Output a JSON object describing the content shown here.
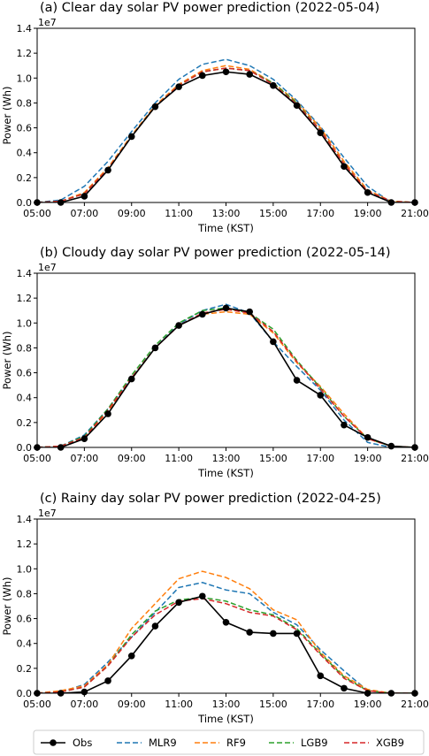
{
  "legend": {
    "placement": "bottom",
    "entries": [
      {
        "name": "Obs",
        "color": "#000000",
        "style": "solid-marker"
      },
      {
        "name": "MLR9",
        "color": "#1f77b4",
        "style": "dashed"
      },
      {
        "name": "RF9",
        "color": "#ff7f0e",
        "style": "dashed"
      },
      {
        "name": "LGB9",
        "color": "#2ca02c",
        "style": "dashed"
      },
      {
        "name": "XGB9",
        "color": "#d62728",
        "style": "dashed"
      }
    ]
  },
  "chart_data": [
    {
      "type": "line",
      "title": "(a) Clear day solar PV power prediction (2022-05-04)",
      "xlabel": "Time (KST)",
      "ylabel": "Power (Wh)",
      "y_multiplier": "1e7",
      "xlim": [
        5,
        21
      ],
      "ylim": [
        0,
        1.4
      ],
      "xticks": [
        5,
        7,
        9,
        11,
        13,
        15,
        17,
        19,
        21
      ],
      "xticklabels": [
        "05:00",
        "07:00",
        "09:00",
        "11:00",
        "13:00",
        "15:00",
        "17:00",
        "19:00",
        "21:00"
      ],
      "yticks": [
        0,
        0.2,
        0.4,
        0.6,
        0.8,
        1.0,
        1.2,
        1.4
      ],
      "yticklabels": [
        "0.0",
        "0.2",
        "0.4",
        "0.6",
        "0.8",
        "1.0",
        "1.2",
        "1.4"
      ],
      "grid": false,
      "x": [
        5,
        6,
        7,
        8,
        9,
        10,
        11,
        12,
        13,
        14,
        15,
        16,
        17,
        18,
        19,
        20,
        21
      ],
      "series": [
        {
          "name": "MLR9",
          "color": "#1f77b4",
          "values": [
            0.0,
            0.02,
            0.13,
            0.33,
            0.57,
            0.8,
            0.99,
            1.11,
            1.15,
            1.1,
            0.99,
            0.82,
            0.61,
            0.36,
            0.13,
            0.0,
            0.0
          ]
        },
        {
          "name": "RF9",
          "color": "#ff7f0e",
          "values": [
            0.0,
            0.01,
            0.08,
            0.28,
            0.54,
            0.78,
            0.95,
            1.06,
            1.1,
            1.07,
            0.96,
            0.81,
            0.6,
            0.33,
            0.1,
            0.01,
            0.0
          ]
        },
        {
          "name": "LGB9",
          "color": "#2ca02c",
          "values": [
            0.0,
            0.01,
            0.07,
            0.27,
            0.53,
            0.77,
            0.94,
            1.05,
            1.08,
            1.06,
            0.96,
            0.8,
            0.58,
            0.31,
            0.09,
            0.01,
            0.0
          ]
        },
        {
          "name": "XGB9",
          "color": "#d62728",
          "values": [
            0.0,
            0.01,
            0.07,
            0.27,
            0.53,
            0.77,
            0.94,
            1.05,
            1.08,
            1.06,
            0.95,
            0.79,
            0.58,
            0.31,
            0.09,
            0.01,
            0.0
          ]
        },
        {
          "name": "Obs",
          "color": "#000000",
          "values": [
            0.0,
            0.0,
            0.05,
            0.26,
            0.53,
            0.77,
            0.93,
            1.02,
            1.05,
            1.03,
            0.94,
            0.78,
            0.56,
            0.29,
            0.08,
            0.0,
            0.0
          ]
        }
      ]
    },
    {
      "type": "line",
      "title": "(b) Cloudy day solar PV power prediction (2022-05-14)",
      "xlabel": "Time (KST)",
      "ylabel": "Power (Wh)",
      "y_multiplier": "1e7",
      "xlim": [
        5,
        21
      ],
      "ylim": [
        0,
        1.4
      ],
      "xticks": [
        5,
        7,
        9,
        11,
        13,
        15,
        17,
        19,
        21
      ],
      "xticklabels": [
        "05:00",
        "07:00",
        "09:00",
        "11:00",
        "13:00",
        "15:00",
        "17:00",
        "19:00",
        "21:00"
      ],
      "yticks": [
        0,
        0.2,
        0.4,
        0.6,
        0.8,
        1.0,
        1.2,
        1.4
      ],
      "yticklabels": [
        "0.0",
        "0.2",
        "0.4",
        "0.6",
        "0.8",
        "1.0",
        "1.2",
        "1.4"
      ],
      "grid": false,
      "x": [
        5,
        6,
        7,
        8,
        9,
        10,
        11,
        12,
        13,
        14,
        15,
        16,
        17,
        18,
        19,
        20,
        21
      ],
      "series": [
        {
          "name": "MLR9",
          "color": "#1f77b4",
          "values": [
            0.0,
            0.01,
            0.1,
            0.31,
            0.56,
            0.8,
            0.99,
            1.1,
            1.15,
            1.08,
            0.85,
            0.65,
            0.46,
            0.22,
            0.04,
            0.0,
            0.0
          ]
        },
        {
          "name": "RF9",
          "color": "#ff7f0e",
          "values": [
            0.0,
            0.01,
            0.08,
            0.29,
            0.55,
            0.8,
            0.98,
            1.07,
            1.09,
            1.07,
            0.92,
            0.68,
            0.49,
            0.27,
            0.07,
            0.01,
            0.0
          ]
        },
        {
          "name": "LGB9",
          "color": "#2ca02c",
          "values": [
            0.0,
            0.01,
            0.09,
            0.31,
            0.58,
            0.82,
            1.0,
            1.1,
            1.12,
            1.08,
            0.95,
            0.7,
            0.48,
            0.25,
            0.07,
            0.01,
            0.0
          ]
        },
        {
          "name": "XGB9",
          "color": "#d62728",
          "values": [
            0.0,
            0.01,
            0.08,
            0.3,
            0.56,
            0.8,
            0.98,
            1.08,
            1.11,
            1.08,
            0.93,
            0.69,
            0.47,
            0.25,
            0.07,
            0.01,
            0.0
          ]
        },
        {
          "name": "Obs",
          "color": "#000000",
          "values": [
            0.0,
            0.0,
            0.07,
            0.27,
            0.55,
            0.8,
            0.98,
            1.07,
            1.12,
            1.09,
            0.85,
            0.54,
            0.42,
            0.18,
            0.08,
            0.01,
            0.0
          ]
        }
      ]
    },
    {
      "type": "line",
      "title": "(c) Rainy day solar PV power prediction (2022-04-25)",
      "xlabel": "Time (KST)",
      "ylabel": "Power (Wh)",
      "y_multiplier": "1e7",
      "xlim": [
        5,
        21
      ],
      "ylim": [
        0,
        1.4
      ],
      "xticks": [
        5,
        7,
        9,
        11,
        13,
        15,
        17,
        19,
        21
      ],
      "xticklabels": [
        "05:00",
        "07:00",
        "09:00",
        "11:00",
        "13:00",
        "15:00",
        "17:00",
        "19:00",
        "21:00"
      ],
      "yticks": [
        0,
        0.2,
        0.4,
        0.6,
        0.8,
        1.0,
        1.2,
        1.4
      ],
      "yticklabels": [
        "0.0",
        "0.2",
        "0.4",
        "0.6",
        "0.8",
        "1.0",
        "1.2",
        "1.4"
      ],
      "grid": false,
      "x": [
        5,
        6,
        7,
        8,
        9,
        10,
        11,
        12,
        13,
        14,
        15,
        16,
        17,
        18,
        19,
        20,
        21
      ],
      "series": [
        {
          "name": "MLR9",
          "color": "#1f77b4",
          "values": [
            0.0,
            0.01,
            0.07,
            0.25,
            0.45,
            0.65,
            0.85,
            0.89,
            0.83,
            0.8,
            0.65,
            0.55,
            0.35,
            0.18,
            0.02,
            0.0,
            0.0
          ]
        },
        {
          "name": "RF9",
          "color": "#ff7f0e",
          "values": [
            0.0,
            0.02,
            0.06,
            0.23,
            0.52,
            0.72,
            0.92,
            0.98,
            0.93,
            0.84,
            0.67,
            0.59,
            0.33,
            0.14,
            0.03,
            0.0,
            0.0
          ]
        },
        {
          "name": "LGB9",
          "color": "#2ca02c",
          "values": [
            0.0,
            0.01,
            0.05,
            0.22,
            0.47,
            0.66,
            0.75,
            0.77,
            0.74,
            0.67,
            0.63,
            0.52,
            0.32,
            0.13,
            0.02,
            0.0,
            0.0
          ]
        },
        {
          "name": "XGB9",
          "color": "#d62728",
          "values": [
            0.0,
            0.01,
            0.05,
            0.22,
            0.45,
            0.63,
            0.74,
            0.76,
            0.72,
            0.65,
            0.62,
            0.51,
            0.31,
            0.12,
            0.02,
            0.0,
            0.0
          ]
        },
        {
          "name": "Obs",
          "color": "#000000",
          "values": [
            0.0,
            0.0,
            0.01,
            0.1,
            0.3,
            0.54,
            0.73,
            0.78,
            0.57,
            0.49,
            0.48,
            0.48,
            0.14,
            0.04,
            0.0,
            0.0,
            0.0
          ]
        }
      ]
    }
  ]
}
